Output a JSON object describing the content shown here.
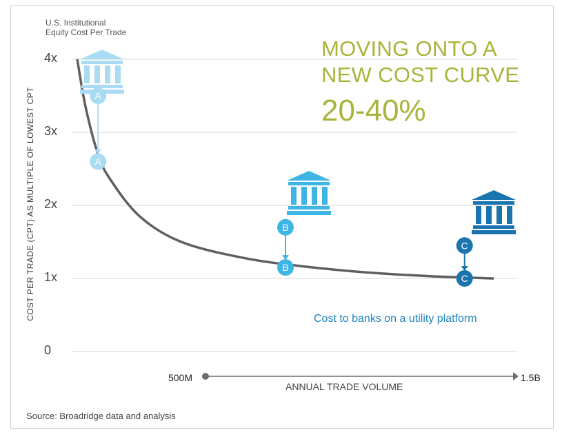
{
  "subtitle_line1": "U.S. Institutional",
  "subtitle_line2": "Equity Cost Per Trade",
  "headline_line1": "MOVING ONTO A",
  "headline_line2": "NEW COST CURVE",
  "headline_pct": "20-40%",
  "utility_label": "Cost to banks on a utility platform",
  "source": "Source: Broadridge data and analysis",
  "colors": {
    "headline": "#a8b43a",
    "curve": "#5f5f5f",
    "bank_a": "#a9dcf3",
    "bank_b": "#3eb5e5",
    "bank_c": "#1a74ae",
    "utility_text": "#1f84c0"
  },
  "chart_data": {
    "type": "line",
    "ylabel": "COST PER TRADE (CPT) AS MULTIPLE OF LOWEST CPT",
    "xlabel": "ANNUAL TRADE VOLUME",
    "x_range_labels": [
      "500M",
      "1.5B"
    ],
    "yticks": [
      "0",
      "1x",
      "2x",
      "3x",
      "4x"
    ],
    "ylim": [
      0,
      4
    ],
    "grid": true,
    "series": [
      {
        "curve": true,
        "points": [
          [
            0.0,
            4.0
          ],
          [
            0.02,
            3.35
          ],
          [
            0.05,
            2.7
          ],
          [
            0.08,
            2.35
          ],
          [
            0.15,
            1.85
          ],
          [
            0.25,
            1.5
          ],
          [
            0.4,
            1.28
          ],
          [
            0.55,
            1.16
          ],
          [
            0.7,
            1.08
          ],
          [
            0.85,
            1.03
          ],
          [
            1.0,
            1.0
          ]
        ]
      }
    ],
    "banks": [
      {
        "label": "A",
        "x": 0.05,
        "before": 3.5,
        "after": 2.6,
        "icon": "bank-a-icon"
      },
      {
        "label": "B",
        "x": 0.5,
        "before": 1.7,
        "after": 1.15,
        "icon": "bank-b-icon"
      },
      {
        "label": "C",
        "x": 0.93,
        "before": 1.45,
        "after": 1.0,
        "icon": "bank-c-icon"
      }
    ]
  }
}
